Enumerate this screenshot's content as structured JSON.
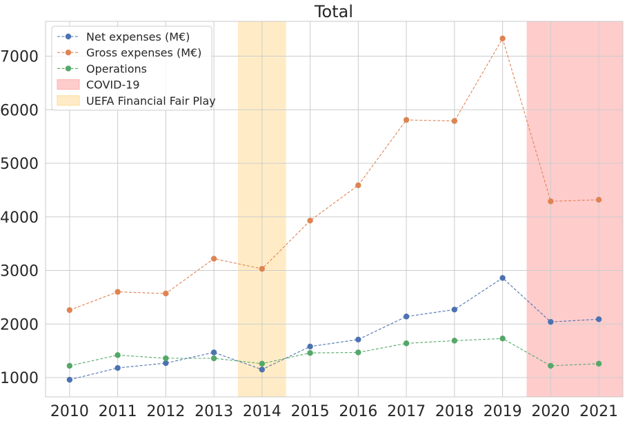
{
  "chart_data": {
    "type": "line",
    "title": "Total",
    "xlabel": "",
    "ylabel": "",
    "x": [
      2010,
      2011,
      2012,
      2013,
      2014,
      2015,
      2016,
      2017,
      2018,
      2019,
      2020,
      2021
    ],
    "xlim": [
      2009.5,
      2021.5
    ],
    "ylim": [
      640,
      7650
    ],
    "yticks": [
      1000,
      2000,
      3000,
      4000,
      5000,
      6000,
      7000
    ],
    "grid": true,
    "legend_position": "top-left",
    "series": [
      {
        "name": "Net expenses (M€)",
        "color": "#4c72b0",
        "line_style": "dashed",
        "marker": "circle",
        "values": [
          960,
          1180,
          1270,
          1470,
          1150,
          1580,
          1710,
          2140,
          2270,
          2860,
          2040,
          2090
        ]
      },
      {
        "name": "Gross expenses (M€)",
        "color": "#dd8452",
        "line_style": "dashed",
        "marker": "circle",
        "values": [
          2260,
          2600,
          2570,
          3220,
          3030,
          3930,
          4590,
          5810,
          5790,
          7330,
          4290,
          4320
        ]
      },
      {
        "name": "Operations",
        "color": "#55a868",
        "line_style": "dashed",
        "marker": "circle",
        "values": [
          1220,
          1420,
          1360,
          1360,
          1260,
          1460,
          1470,
          1640,
          1690,
          1730,
          1220,
          1260
        ]
      }
    ],
    "bands": [
      {
        "name": "COVID-19",
        "x_start": 2019.5,
        "x_end": 2021.5,
        "color": "#ffcccc",
        "edge_color": "#ffb0b0"
      },
      {
        "name": "UEFA Financial Fair Play",
        "x_start": 2013.5,
        "x_end": 2014.5,
        "color": "#ffecc6",
        "edge_color": "#f8dc9c"
      }
    ]
  }
}
